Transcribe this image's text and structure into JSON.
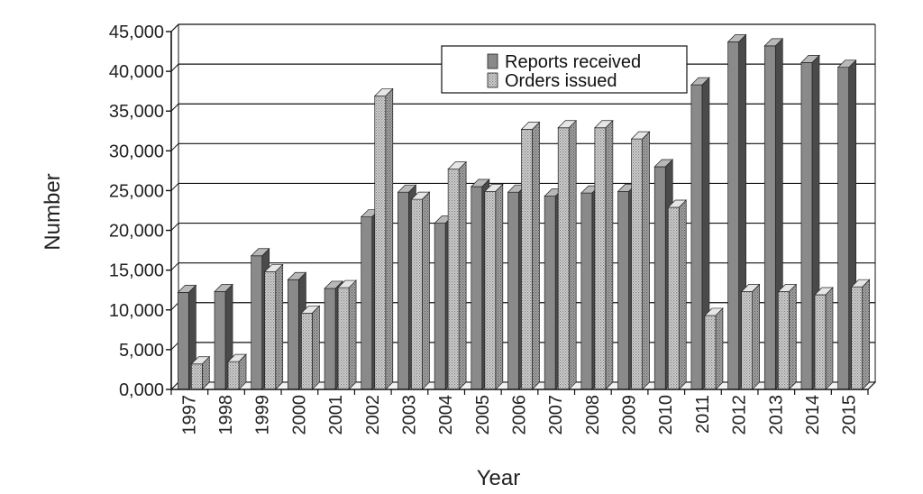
{
  "chart_data": {
    "type": "bar",
    "xlabel": "Year",
    "ylabel": "Number",
    "ylim": [
      0,
      45000
    ],
    "yticks": [
      0,
      5000,
      10000,
      15000,
      20000,
      25000,
      30000,
      35000,
      40000,
      45000
    ],
    "ytick_labels": [
      "0,000",
      "5,000",
      "10,000",
      "15,000",
      "20,000",
      "25,000",
      "30,000",
      "35,000",
      "40,000",
      "45,000"
    ],
    "categories": [
      "1997",
      "1998",
      "1999",
      "2000",
      "2001",
      "2002",
      "2003",
      "2004",
      "2005",
      "2006",
      "2007",
      "2008",
      "2009",
      "2010",
      "2011",
      "2012",
      "2013",
      "2014",
      "2015"
    ],
    "series": [
      {
        "name": "Reports received",
        "pattern": "solid-gray",
        "values": [
          12200,
          12300,
          16800,
          13800,
          12700,
          21700,
          24800,
          20900,
          25500,
          24800,
          24300,
          24700,
          24900,
          28000,
          38300,
          43700,
          43200,
          41100,
          40500
        ]
      },
      {
        "name": "Orders issued",
        "pattern": "dotted-light",
        "values": [
          3200,
          3500,
          14800,
          9600,
          12800,
          36900,
          23900,
          27700,
          24900,
          32700,
          32900,
          32900,
          31500,
          22900,
          9300,
          12300,
          12300,
          11900,
          12900
        ]
      }
    ],
    "grid": true,
    "legend_position": "top-center",
    "colors": {
      "reports_fill": "#8a8a8a",
      "reports_side": "#4a4a4a",
      "reports_top": "#b8b8b8",
      "orders_fill": "#d4d4d4",
      "orders_dot": "#7a7a7a",
      "grid": "#111111",
      "axis": "#111111"
    }
  }
}
